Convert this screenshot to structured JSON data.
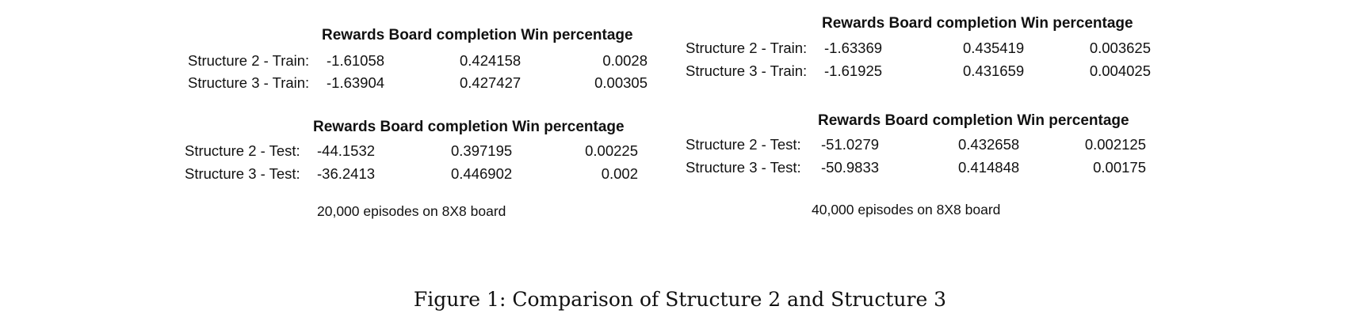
{
  "panels": [
    {
      "caption": "20,000 episodes on 8X8 board",
      "blocks": [
        {
          "header": [
            "Rewards",
            "Board completion",
            "Win percentage"
          ],
          "rows": [
            {
              "label": "Structure 2 - Train:",
              "rewards": "-1.61058",
              "board": "0.424158",
              "win": "0.0028"
            },
            {
              "label": "Structure 3 - Train:",
              "rewards": "-1.63904",
              "board": "0.427427",
              "win": "0.00305"
            }
          ]
        },
        {
          "header": [
            "Rewards",
            "Board completion",
            "Win percentage"
          ],
          "rows": [
            {
              "label": "Structure 2 - Test:",
              "rewards": "-44.1532",
              "board": "0.397195",
              "win": "0.00225"
            },
            {
              "label": "Structure 3 - Test:",
              "rewards": "-36.2413",
              "board": "0.446902",
              "win": "0.002"
            }
          ]
        }
      ]
    },
    {
      "caption": "40,000 episodes on 8X8 board",
      "blocks": [
        {
          "header": [
            "Rewards",
            "Board completion",
            "Win percentage"
          ],
          "rows": [
            {
              "label": "Structure 2 - Train:",
              "rewards": "-1.63369",
              "board": "0.435419",
              "win": "0.003625"
            },
            {
              "label": "Structure 3 - Train:",
              "rewards": "-1.61925",
              "board": "0.431659",
              "win": "0.004025"
            }
          ]
        },
        {
          "header": [
            "Rewards",
            "Board completion",
            "Win percentage"
          ],
          "rows": [
            {
              "label": "Structure 2 - Test:",
              "rewards": "-51.0279",
              "board": "0.432658",
              "win": "0.002125"
            },
            {
              "label": "Structure 3 - Test:",
              "rewards": "-50.9833",
              "board": "0.414848",
              "win": "0.00175"
            }
          ]
        }
      ]
    }
  ],
  "figure_caption": "Figure 1: Comparison of Structure 2 and Structure 3"
}
